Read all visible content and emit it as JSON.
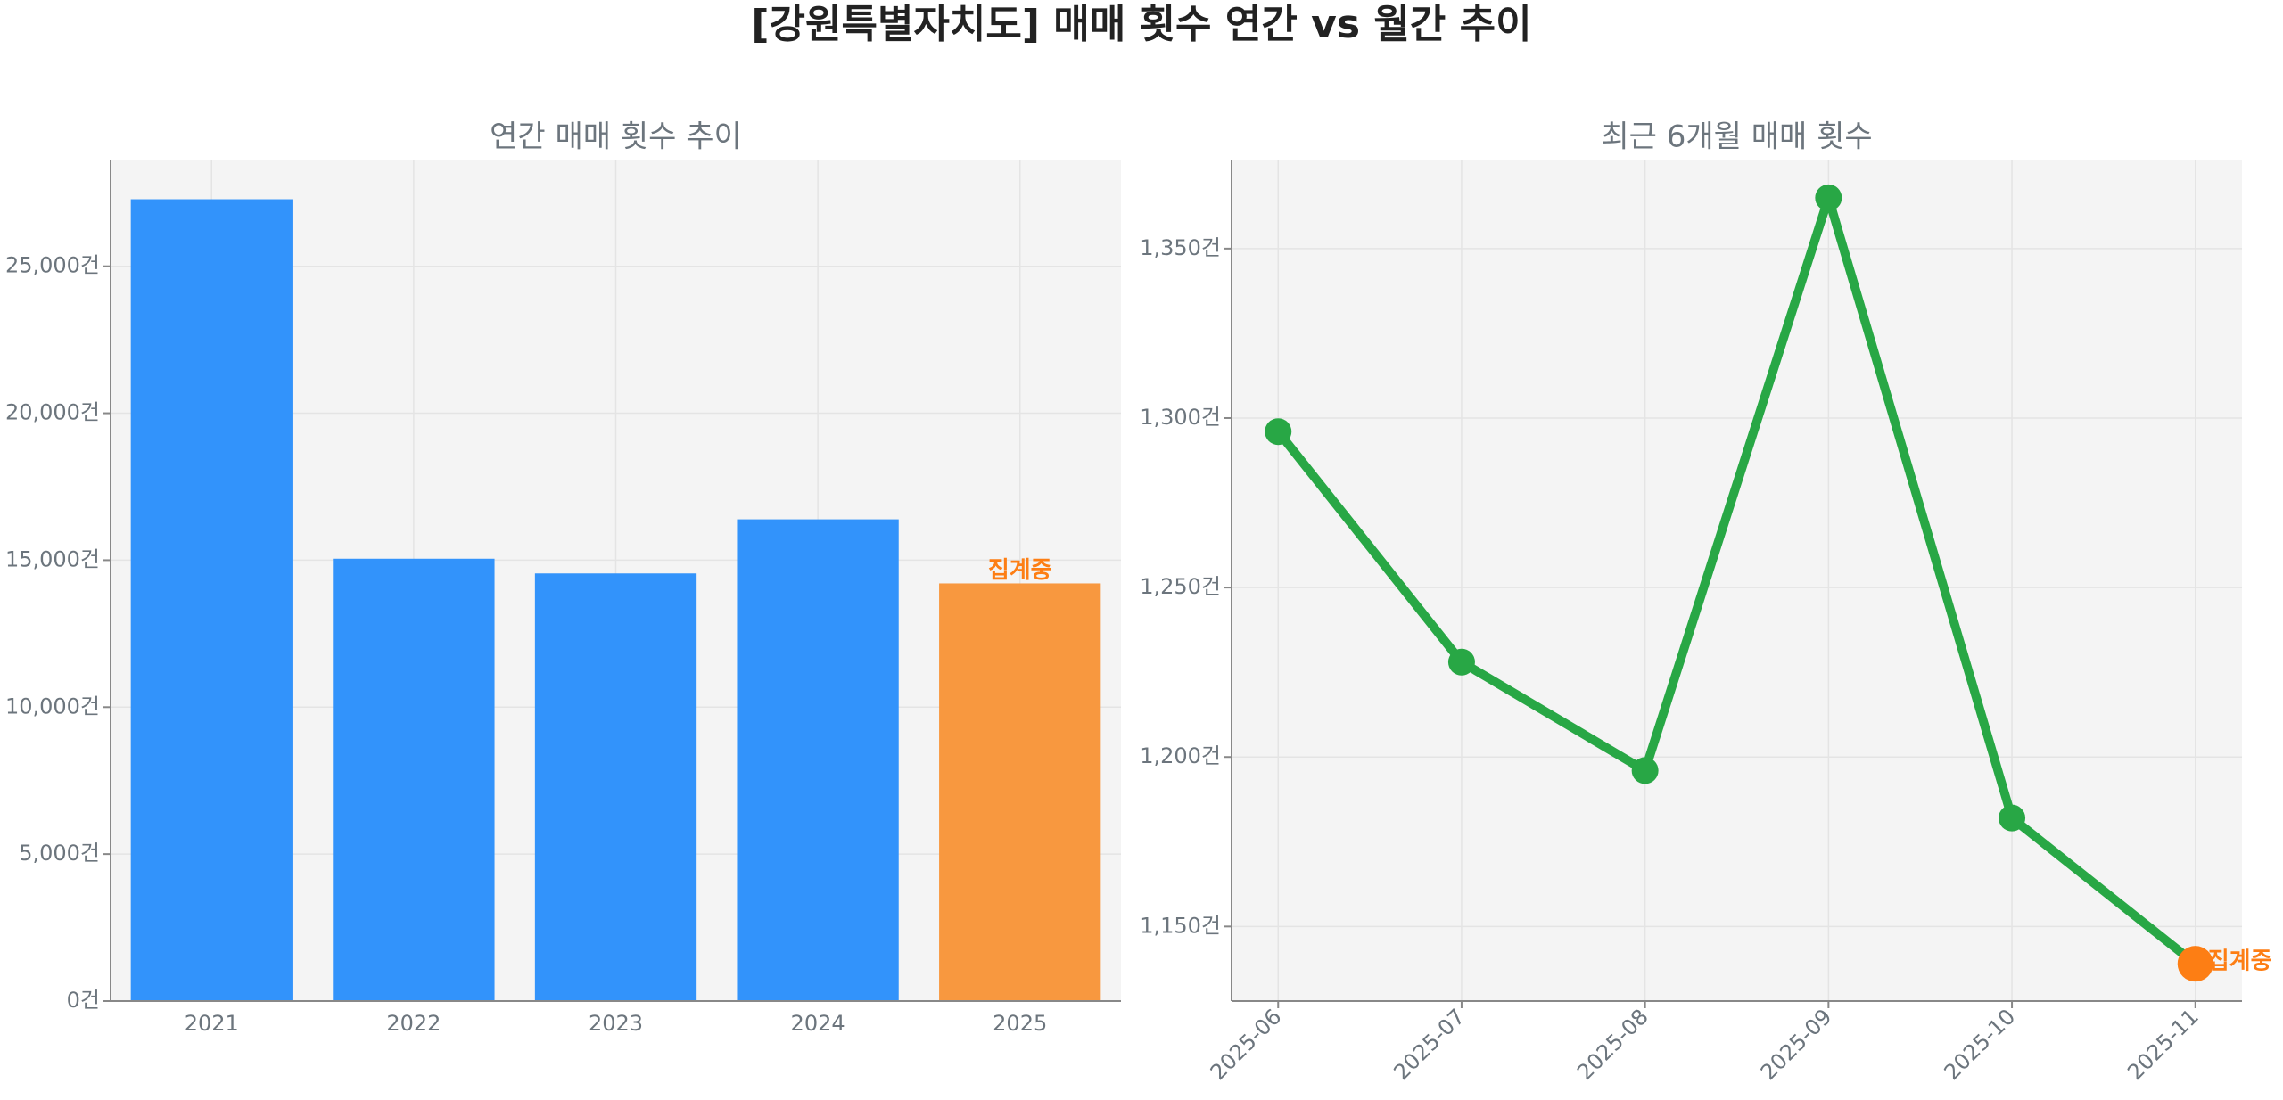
{
  "title": "[강원특별자치도] 매매 횟수 연간 vs 월간 추이",
  "chart_data": [
    {
      "type": "bar",
      "title": "연간 매매 횟수 추이",
      "categories": [
        "2021",
        "2022",
        "2023",
        "2024",
        "2025"
      ],
      "values": [
        27280,
        15050,
        14550,
        16390,
        14210
      ],
      "colors": [
        "#3293fb",
        "#3293fb",
        "#3293fb",
        "#3293fb",
        "#f8983f"
      ],
      "annotation": {
        "text": "집계중",
        "index": 4,
        "color": "#fd7e14"
      },
      "ylim": [
        0,
        28600
      ],
      "yticks": [
        {
          "value": 0,
          "label": "0건"
        },
        {
          "value": 5000,
          "label": "5,000건"
        },
        {
          "value": 10000,
          "label": "10,000건"
        },
        {
          "value": 15000,
          "label": "15,000건"
        },
        {
          "value": 20000,
          "label": "20,000건"
        },
        {
          "value": 25000,
          "label": "25,000건"
        }
      ],
      "grid": true
    },
    {
      "type": "line",
      "title": "최근 6개월 매매 횟수",
      "categories": [
        "2025-06",
        "2025-07",
        "2025-08",
        "2025-09",
        "2025-10",
        "2025-11"
      ],
      "values": [
        1296,
        1228,
        1196,
        1365,
        1182,
        1139
      ],
      "color": "#28a745",
      "marker_colors": [
        "#28a745",
        "#28a745",
        "#28a745",
        "#28a745",
        "#28a745",
        "#fd7e14"
      ],
      "annotation": {
        "text": "집계중",
        "index": 5,
        "color": "#fd7e14"
      },
      "ylim": [
        1128,
        1376
      ],
      "yticks": [
        {
          "value": 1150,
          "label": "1,150건"
        },
        {
          "value": 1200,
          "label": "1,200건"
        },
        {
          "value": 1250,
          "label": "1,250건"
        },
        {
          "value": 1300,
          "label": "1,300건"
        },
        {
          "value": 1350,
          "label": "1,350건"
        }
      ],
      "grid": true
    }
  ]
}
